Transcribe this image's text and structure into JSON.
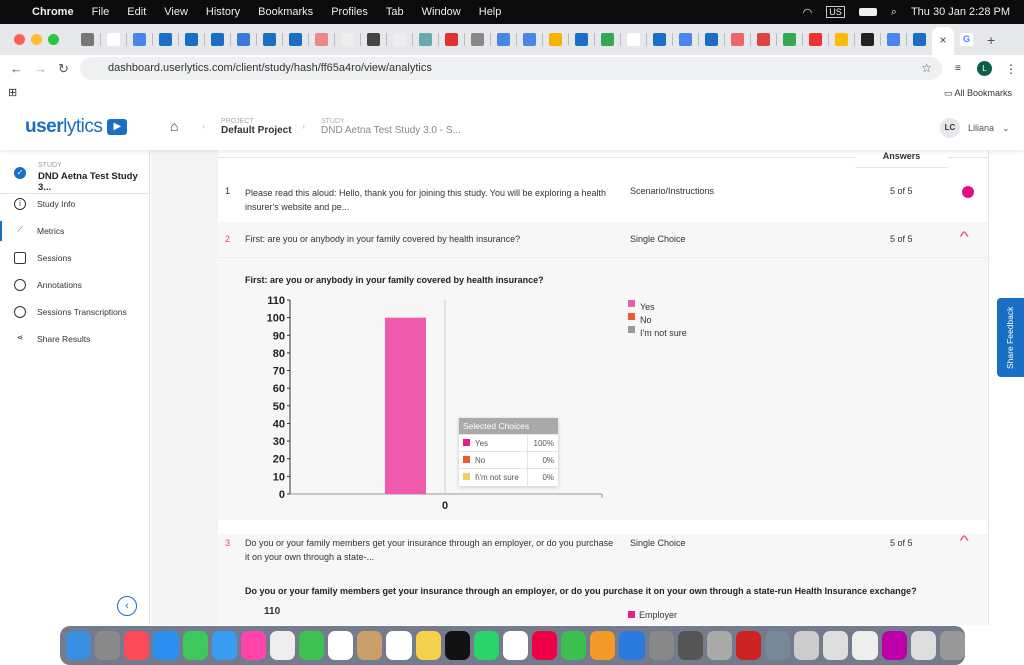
{
  "menubar": {
    "apple": "",
    "app": "Chrome",
    "items": [
      "File",
      "Edit",
      "View",
      "History",
      "Bookmarks",
      "Profiles",
      "Tab",
      "Window",
      "Help"
    ],
    "keyboard": "US",
    "datetime": "Thu 30 Jan  2:28 PM"
  },
  "browser": {
    "url": "dashboard.userlytics.com/client/study/hash/ff65a4ro/view/analytics",
    "all_bookmarks": "All Bookmarks",
    "profile_initial": "L",
    "new_tab": "+",
    "close_tab": "×"
  },
  "header": {
    "logo_bold": "user",
    "logo_light": "lytics",
    "project_label": "PROJECT",
    "project": "Default Project",
    "study_label": "STUDY",
    "study": "DND Aetna Test Study 3.0 - S...",
    "user_initials": "LC",
    "user_name": "Liliana"
  },
  "sidebar": {
    "study_label": "STUDY",
    "study_name": "DND Aetna Test Study 3...",
    "items": [
      {
        "label": "Study Info",
        "icon": "info-icon"
      },
      {
        "label": "Metrics",
        "icon": "chart-line-icon",
        "active": true
      },
      {
        "label": "Sessions",
        "icon": "video-icon"
      },
      {
        "label": "Annotations",
        "icon": "clock-icon"
      },
      {
        "label": "Sessions Transcriptions",
        "icon": "speech-bubble-icon"
      },
      {
        "label": "Share Results",
        "icon": "share-icon"
      }
    ]
  },
  "table": {
    "answers_header": "Answers",
    "rows": [
      {
        "num": "1",
        "question": "Please read this aloud: Hello, thank you for joining this study. You will be exploring a health insurer's website and pe...",
        "type": "Scenario/Instructions",
        "answers": "5 of 5"
      },
      {
        "num": "2",
        "question": "First: are you or anybody in your family covered by health insurance?",
        "type": "Single Choice",
        "answers": "5 of 5"
      },
      {
        "num": "3",
        "question": "Do you or your family members get your insurance through an employer, or do you purchase it on your own through a state-...",
        "type": "Single Choice",
        "answers": "5 of 5"
      }
    ]
  },
  "chart_data": [
    {
      "type": "bar",
      "title": "First: are you or anybody in your family covered by health insurance?",
      "categories": [
        "0"
      ],
      "series": [
        {
          "name": "Yes",
          "values": [
            100
          ],
          "color": "#f05aad"
        },
        {
          "name": "No",
          "values": [
            0
          ],
          "color": "#f05a2a"
        },
        {
          "name": "I'm not sure",
          "values": [
            0
          ],
          "color": "#999999"
        }
      ],
      "ylim": [
        0,
        110
      ],
      "yticks": [
        "0",
        "10",
        "20",
        "30",
        "40",
        "50",
        "60",
        "70",
        "80",
        "90",
        "100",
        "110"
      ],
      "legend": "right",
      "tooltip": {
        "title": "Selected Choices",
        "rows": [
          {
            "label": "Yes",
            "value": "100%",
            "color": "#e91e8c"
          },
          {
            "label": "No",
            "value": "0%",
            "color": "#f05a2a"
          },
          {
            "label": "I\\'m not sure",
            "value": "0%",
            "color": "#f5cc5e"
          }
        ]
      }
    },
    {
      "type": "bar",
      "title": "Do you or your family members get your insurance through an employer, or do you purchase it on your own through a state-run Health Insurance exchange?",
      "yticks": [
        "110"
      ],
      "series": [
        {
          "name": "Employer",
          "color": "#e91e8c"
        }
      ],
      "legend": "right"
    }
  ],
  "share_feedback": "Share Feedback",
  "colors": {
    "brand": "#1a6fc4",
    "accent": "#e91e8c"
  }
}
